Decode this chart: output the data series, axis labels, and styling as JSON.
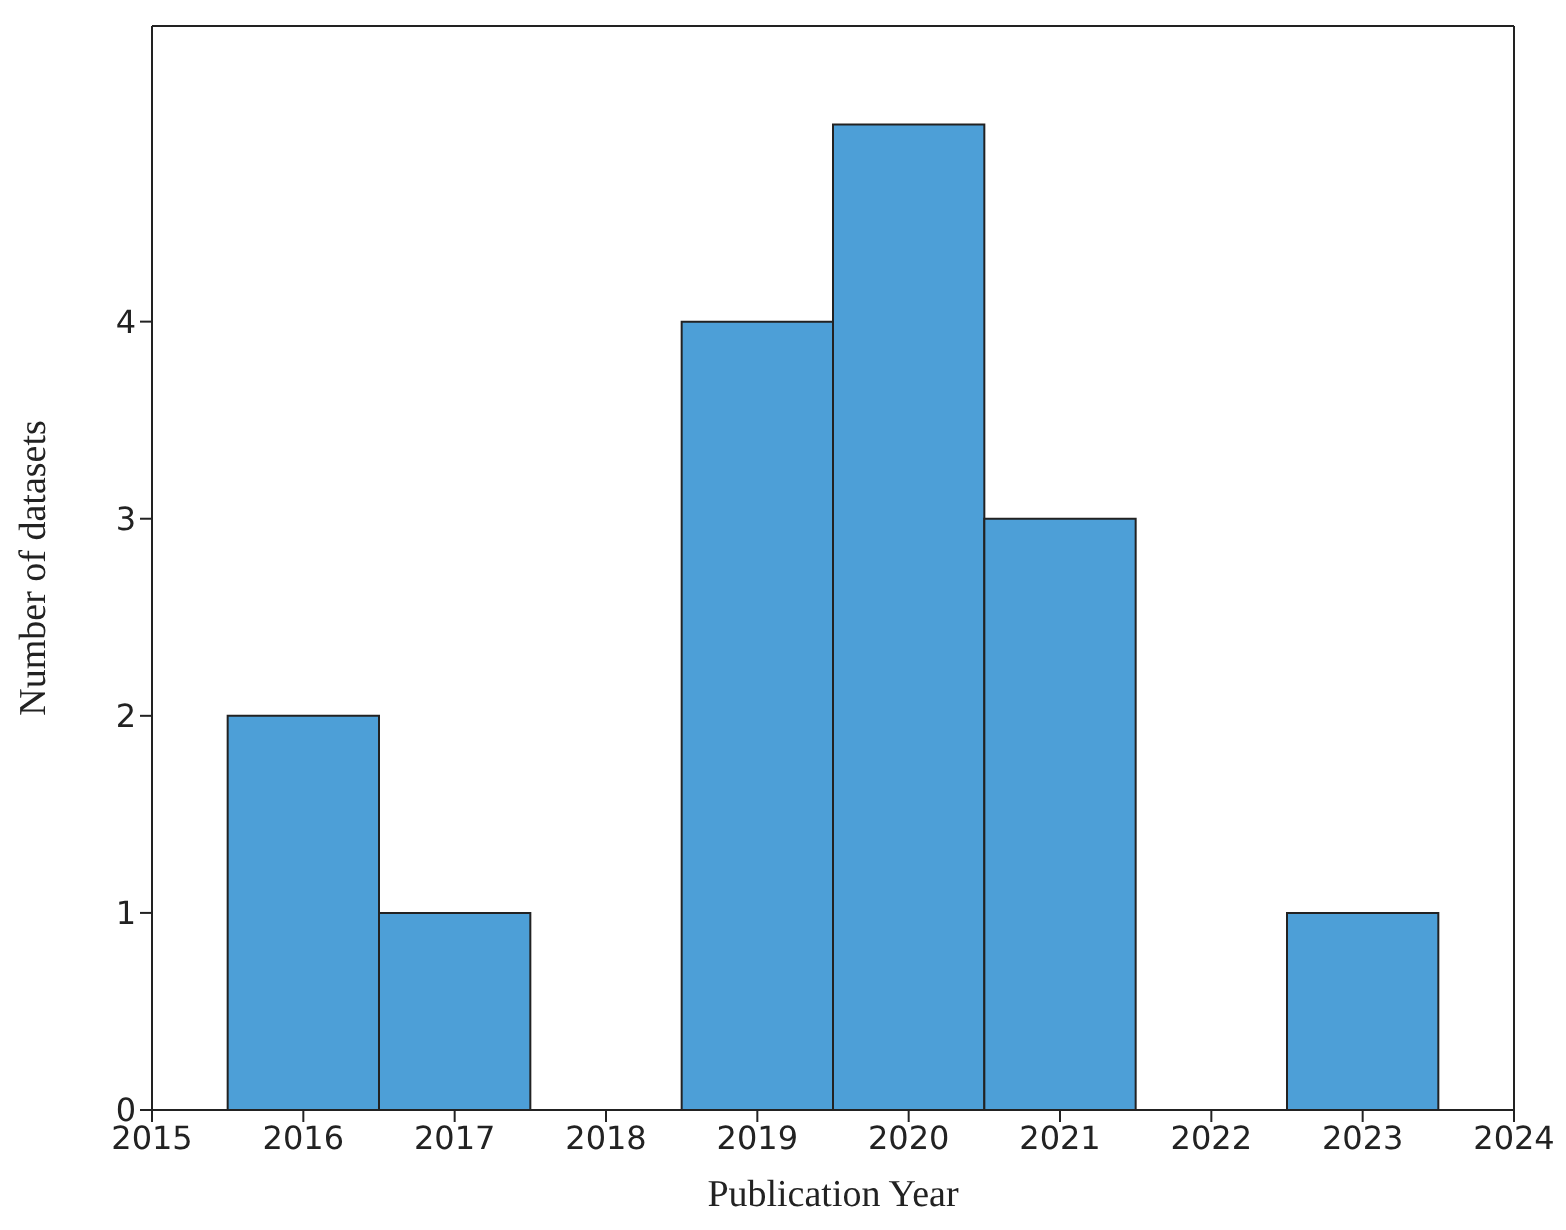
{
  "chart_data": {
    "type": "histogram",
    "xlabel": "Publication Year",
    "ylabel": "Number of datasets",
    "bins": [
      2015.5,
      2016.5,
      2017.5,
      2018.5,
      2019.5,
      2020.5,
      2021.5,
      2022.5,
      2023.5
    ],
    "values": [
      2,
      1,
      0,
      4,
      5,
      3,
      0,
      1
    ],
    "color": "#4d9fd7",
    "xlim": [
      2015,
      2024
    ],
    "xticks": [
      2015,
      2016,
      2017,
      2018,
      2019,
      2020,
      2021,
      2022,
      2023,
      2024
    ],
    "ylim": [
      0,
      5.5
    ],
    "yticks": [
      0,
      1,
      2,
      3,
      4
    ],
    "grid": false
  }
}
